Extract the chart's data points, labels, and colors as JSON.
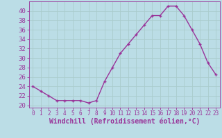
{
  "hours": [
    0,
    1,
    2,
    3,
    4,
    5,
    6,
    7,
    8,
    9,
    10,
    11,
    12,
    13,
    14,
    15,
    16,
    17,
    18,
    19,
    20,
    21,
    22,
    23
  ],
  "values": [
    24,
    23,
    22,
    21,
    21,
    21,
    21,
    20.5,
    21,
    25,
    28,
    31,
    33,
    35,
    37,
    39,
    39,
    41,
    41,
    39,
    36,
    33,
    29,
    26.5
  ],
  "line_color": "#993399",
  "marker": "+",
  "bg_color": "#bbdde6",
  "grid_color": "#aacccc",
  "xlabel": "Windchill (Refroidissement éolien,°C)",
  "xlabel_color": "#993399",
  "tick_color": "#993399",
  "ylim": [
    19.5,
    42
  ],
  "yticks": [
    20,
    22,
    24,
    26,
    28,
    30,
    32,
    34,
    36,
    38,
    40
  ],
  "xlim": [
    -0.5,
    23.5
  ],
  "xticks": [
    0,
    1,
    2,
    3,
    4,
    5,
    6,
    7,
    8,
    9,
    10,
    11,
    12,
    13,
    14,
    15,
    16,
    17,
    18,
    19,
    20,
    21,
    22,
    23
  ],
  "xlabel_fontsize": 7,
  "ytick_fontsize": 6.5,
  "xtick_fontsize": 5.5,
  "linewidth": 1.0,
  "markersize": 3.5,
  "markeredgewidth": 1.0
}
